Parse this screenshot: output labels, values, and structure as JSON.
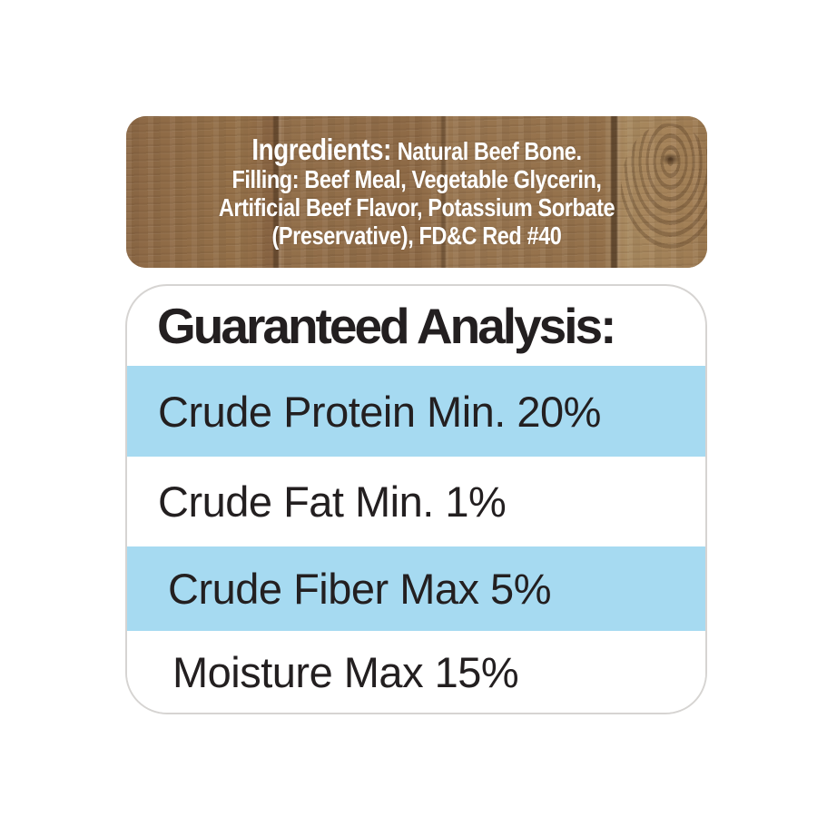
{
  "ingredients_panel": {
    "lead": "Ingredients:",
    "line1_rest": "Natural Beef Bone.",
    "line2": "Filling: Beef Meal, Vegetable Glycerin,",
    "line3": "Artificial Beef Flavor, Potassium Sorbate",
    "line4": "(Preservative), FD&C Red #40"
  },
  "analysis_panel": {
    "title": "Guaranteed Analysis:",
    "rows": [
      {
        "label": "Crude Protein Min. 20%",
        "highlighted": true
      },
      {
        "label": "Crude Fat Min. 1%",
        "highlighted": false
      },
      {
        "label": "Crude Fiber Max 5%",
        "highlighted": true
      },
      {
        "label": "Moisture Max 15%",
        "highlighted": false
      }
    ]
  },
  "colors": {
    "stripe_blue": "#A6DAF1",
    "text_dark": "#231F20",
    "text_white": "#FFFFFF",
    "wood_base": "#8D6A47",
    "panel_border": "#D6D4D2"
  }
}
